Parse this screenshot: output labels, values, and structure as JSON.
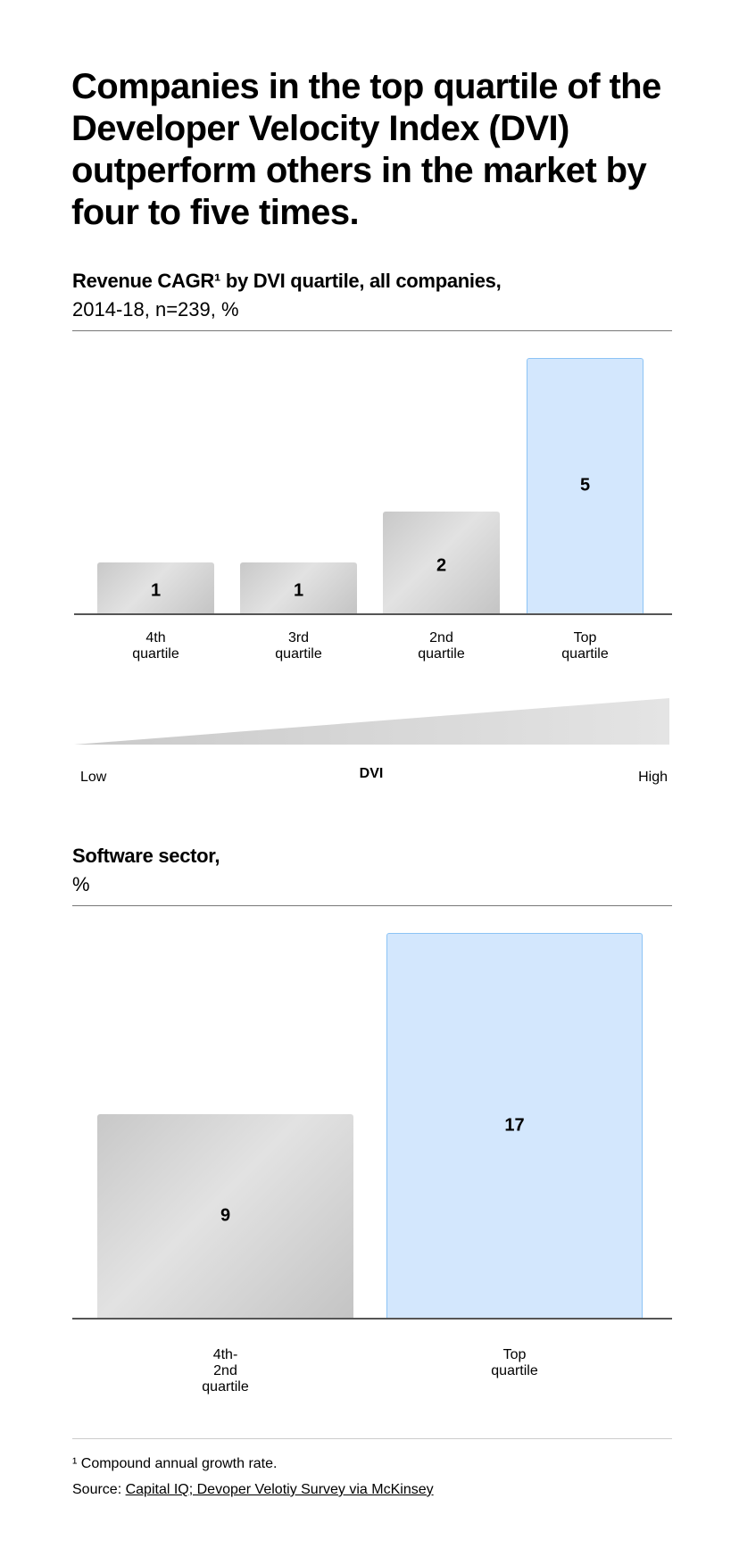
{
  "title": "Companies in the top quartile of the Developer Velocity Index (DVI) outperform others in the market by four to five times.",
  "chart_data": [
    {
      "type": "bar",
      "title": "Revenue CAGR¹ by DVI quartile, all companies,",
      "subtitle": "2014-18, n=239, %",
      "categories": [
        "4th quartile",
        "3rd quartile",
        "2nd quartile",
        "Top quartile"
      ],
      "values": [
        1,
        1,
        2,
        5
      ],
      "highlight": "Top quartile",
      "colors": {
        "bar": "#d4d4d4",
        "highlight": "#d3e7fd",
        "highlight_border": "#8cc3f5"
      },
      "ylim": [
        0,
        5
      ]
    },
    {
      "type": "bar",
      "title": "Software sector,",
      "subtitle": "%",
      "categories": [
        "4th-2nd quartile",
        "Top quartile"
      ],
      "values": [
        9,
        17
      ],
      "highlight": "Top quartile",
      "colors": {
        "bar": "#d4d4d4",
        "highlight": "#d3e7fd",
        "highlight_border": "#8cc3f5"
      },
      "ylim": [
        0,
        17
      ]
    }
  ],
  "dvi_scale": {
    "low": "Low",
    "label": "DVI",
    "high": "High"
  },
  "footnote": "¹ Compound annual growth rate.",
  "source_label": "Source: ",
  "source_link": "Capital IQ; Devoper Velotiy Survey via McKinsey"
}
